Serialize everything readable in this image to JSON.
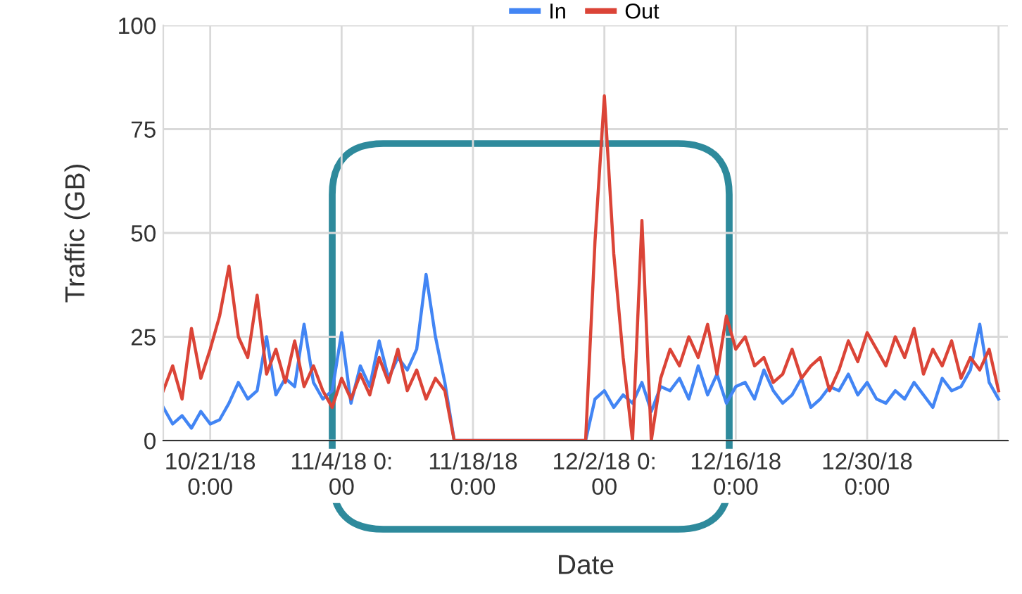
{
  "chart_data": {
    "type": "line",
    "xlabel": "Date",
    "ylabel": "Traffic (GB)",
    "x": [
      "2018-10-16",
      "2018-10-17",
      "2018-10-18",
      "2018-10-19",
      "2018-10-20",
      "2018-10-21",
      "2018-10-22",
      "2018-10-23",
      "2018-10-24",
      "2018-10-25",
      "2018-10-26",
      "2018-10-27",
      "2018-10-28",
      "2018-10-29",
      "2018-10-30",
      "2018-10-31",
      "2018-11-01",
      "2018-11-02",
      "2018-11-03",
      "2018-11-04",
      "2018-11-05",
      "2018-11-06",
      "2018-11-07",
      "2018-11-08",
      "2018-11-09",
      "2018-11-10",
      "2018-11-11",
      "2018-11-12",
      "2018-11-13",
      "2018-11-14",
      "2018-11-15",
      "2018-11-16",
      "2018-11-17",
      "2018-11-18",
      "2018-11-19",
      "2018-11-20",
      "2018-11-21",
      "2018-11-22",
      "2018-11-23",
      "2018-11-24",
      "2018-11-25",
      "2018-11-26",
      "2018-11-27",
      "2018-11-28",
      "2018-11-29",
      "2018-11-30",
      "2018-12-01",
      "2018-12-02",
      "2018-12-03",
      "2018-12-04",
      "2018-12-05",
      "2018-12-06",
      "2018-12-07",
      "2018-12-08",
      "2018-12-09",
      "2018-12-10",
      "2018-12-11",
      "2018-12-12",
      "2018-12-13",
      "2018-12-14",
      "2018-12-15",
      "2018-12-16",
      "2018-12-17",
      "2018-12-18",
      "2018-12-19",
      "2018-12-20",
      "2018-12-21",
      "2018-12-22",
      "2018-12-23",
      "2018-12-24",
      "2018-12-25",
      "2018-12-26",
      "2018-12-27",
      "2018-12-28",
      "2018-12-29",
      "2018-12-30",
      "2018-12-31",
      "2019-01-01",
      "2019-01-02",
      "2019-01-03",
      "2019-01-04",
      "2019-01-05",
      "2019-01-06",
      "2019-01-07",
      "2019-01-08",
      "2019-01-09",
      "2019-01-10",
      "2019-01-11",
      "2019-01-12",
      "2019-01-13"
    ],
    "series": [
      {
        "name": "In",
        "color": "#4285f4",
        "values": [
          8,
          4,
          6,
          3,
          7,
          4,
          5,
          9,
          14,
          10,
          12,
          25,
          11,
          15,
          13,
          28,
          14,
          10,
          12,
          26,
          9,
          18,
          13,
          24,
          15,
          20,
          17,
          22,
          40,
          25,
          14,
          0,
          0,
          0,
          0,
          0,
          0,
          0,
          0,
          0,
          0,
          0,
          0,
          0,
          0,
          0,
          10,
          12,
          8,
          11,
          9,
          14,
          7,
          13,
          12,
          15,
          10,
          18,
          11,
          16,
          9,
          13,
          14,
          10,
          17,
          12,
          9,
          11,
          15,
          8,
          10,
          13,
          12,
          16,
          11,
          14,
          10,
          9,
          12,
          10,
          14,
          11,
          8,
          15,
          12,
          13,
          17,
          28,
          14,
          10
        ]
      },
      {
        "name": "Out",
        "color": "#db4437",
        "values": [
          12,
          18,
          10,
          27,
          15,
          22,
          30,
          42,
          25,
          20,
          35,
          16,
          22,
          14,
          24,
          13,
          18,
          12,
          8,
          15,
          10,
          16,
          11,
          20,
          14,
          22,
          12,
          17,
          10,
          15,
          12,
          0,
          0,
          0,
          0,
          0,
          0,
          0,
          0,
          0,
          0,
          0,
          0,
          0,
          0,
          0,
          48,
          83,
          45,
          20,
          0,
          53,
          0,
          15,
          22,
          18,
          25,
          20,
          28,
          16,
          30,
          22,
          25,
          18,
          20,
          14,
          16,
          22,
          15,
          18,
          20,
          12,
          17,
          24,
          19,
          26,
          22,
          18,
          25,
          20,
          27,
          16,
          22,
          18,
          24,
          15,
          20,
          17,
          22,
          12
        ]
      }
    ],
    "xlim": [
      "2018-10-16",
      "2019-01-14"
    ],
    "xticks": [
      {
        "value": "2018-10-21",
        "label": "10/21/18\n0:00"
      },
      {
        "value": "2018-11-04",
        "label": "11/4/18 0:\n00"
      },
      {
        "value": "2018-11-18",
        "label": "11/18/18\n0:00"
      },
      {
        "value": "2018-12-02",
        "label": "12/2/18 0:\n00"
      },
      {
        "value": "2018-12-16",
        "label": "12/16/18\n0:00"
      },
      {
        "value": "2018-12-30",
        "label": "12/30/18\n0:00"
      },
      {
        "value": "2019-01-13",
        "label": null
      }
    ],
    "ylim": [
      0,
      100
    ],
    "yticks": [
      0,
      25,
      50,
      75,
      100
    ],
    "grid": true,
    "legend": "top",
    "marker": "none",
    "line_style": "solid"
  }
}
